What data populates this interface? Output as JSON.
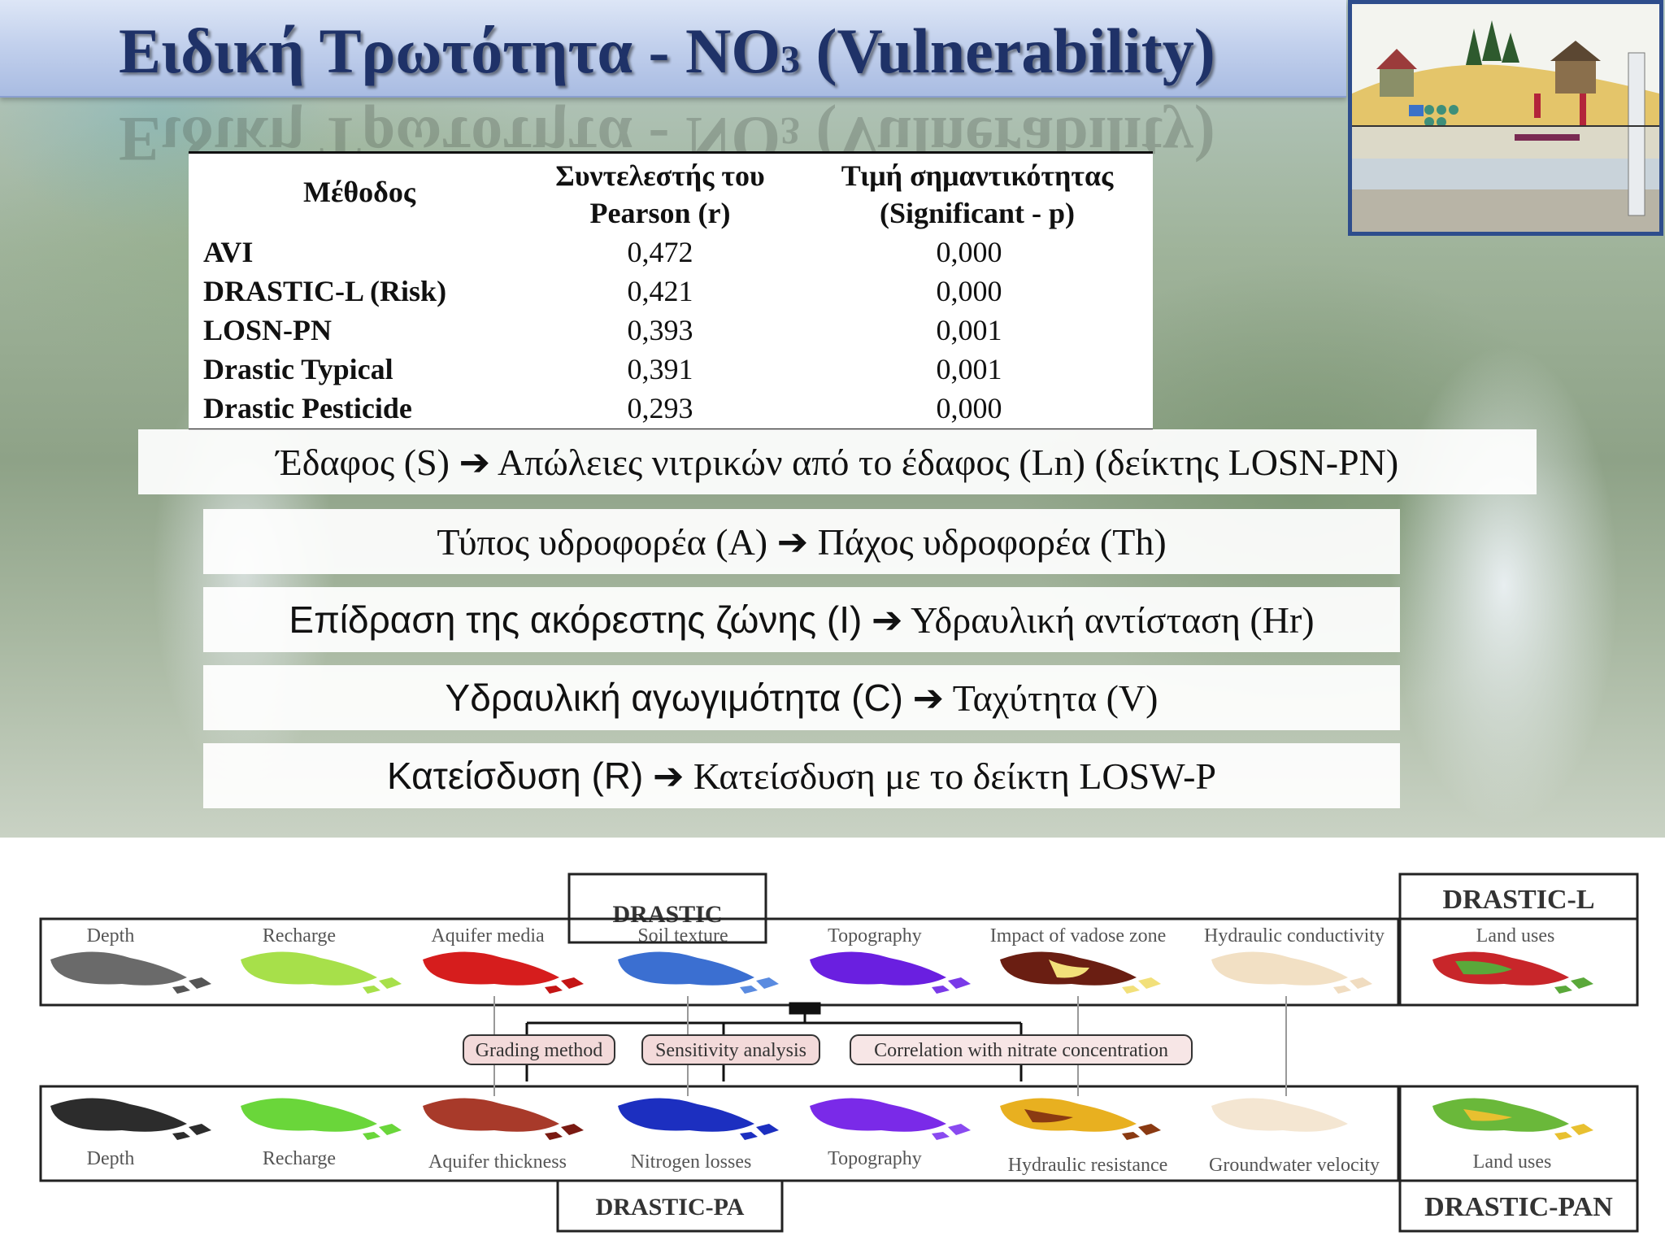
{
  "title": {
    "main": "Ειδική Τρωτότητα - NO",
    "sub": "3",
    "suffix": " (Vulnerability)"
  },
  "table": {
    "headers": {
      "method": "Μέθοδος",
      "r_line1": "Συντελεστής του",
      "r_line2": "Pearson (r)",
      "p_line1": "Τιμή σημαντικότητας",
      "p_line2": "(Significant - p)"
    },
    "rows": [
      {
        "method": "AVI",
        "r": "0,472",
        "p": "0,000"
      },
      {
        "method": "DRASTIC-L (Risk)",
        "r": "0,421",
        "p": "0,000"
      },
      {
        "method": "LOSN-PN",
        "r": "0,393",
        "p": "0,001"
      },
      {
        "method": "Drastic Typical",
        "r": "0,391",
        "p": "0,001"
      },
      {
        "method": "Drastic Pesticide",
        "r": "0,293",
        "p": "0,000"
      }
    ]
  },
  "mappings": [
    {
      "from": "Έδαφος  (S)",
      "arrow": "➔",
      "to": "Απώλειες νιτρικών από το έδαφος (Ln) (δείκτης LOSN-PN)"
    },
    {
      "from": "Τύπος υδροφορέα  (A)",
      "arrow": "➔",
      "to": "Πάχος υδροφορέα (Th)"
    },
    {
      "from": "Επίδραση της ακόρεστης ζώνης (I)",
      "arrow": "➔",
      "to": "Υδραυλική αντίσταση (Hr)"
    },
    {
      "from": "Υδραυλική αγωγιμότητα (C)",
      "arrow": "➔",
      "to": "Ταχύτητα (V)"
    },
    {
      "from": "Κατείσδυση (R)",
      "arrow": "➔",
      "to": "Κατείσδυση με το δείκτη LOSW-P"
    }
  ],
  "diagram": {
    "top_label": "DRASTIC",
    "top_right_label": "DRASTIC-L",
    "bottom_label": "DRASTIC-PA",
    "bottom_right_label": "DRASTIC-PAN",
    "top_maps": [
      "Depth",
      "Recharge",
      "Aquifer media",
      "Soil texture",
      "Topography",
      "Impact of vadose zone",
      "Hydraulic conductivity"
    ],
    "top_right_map": "Land uses",
    "bottom_maps": [
      "Depth",
      "Recharge",
      "Aquifer thickness",
      "Nitrogen losses",
      "Topography",
      "Hydraulic resistance",
      "Groundwater velocity"
    ],
    "bottom_right_map": "Land uses",
    "methods": [
      "Grading method",
      "Sensitivity analysis",
      "Correlation with nitrate concentration"
    ]
  },
  "colors": {
    "title_text": "#1f3268",
    "title_bar": "#c3d1ed",
    "thumb_border": "#2e4d8c"
  }
}
